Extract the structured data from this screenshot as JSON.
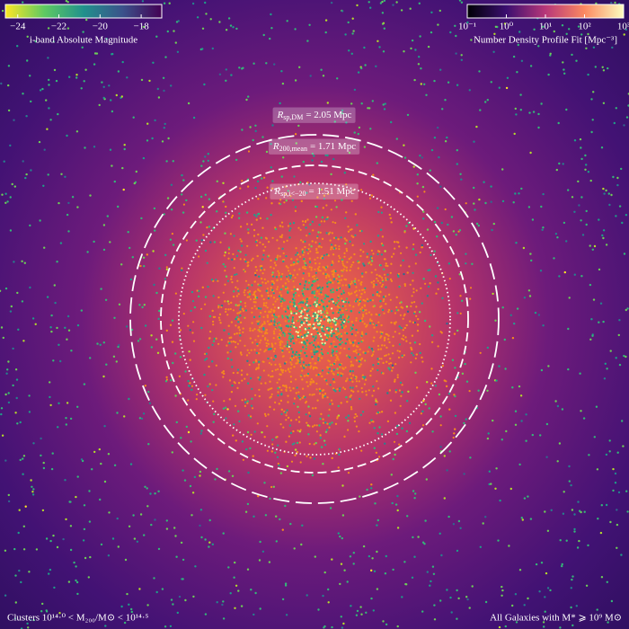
{
  "colorbars": [
    {
      "label": "i-band Absolute Magnitude",
      "lim": [
        -24.6,
        -17
      ],
      "log": false,
      "ticks": [
        {
          "value": -24,
          "label": "−24"
        },
        {
          "value": -22,
          "label": "−22"
        },
        {
          "value": -20,
          "label": "−20"
        },
        {
          "value": -18,
          "label": "−18"
        }
      ]
    },
    {
      "label": "Number Density Profile Fit [Mpc⁻³]",
      "lim": [
        0.1,
        1000
      ],
      "log": true,
      "ticks": [
        {
          "value": 0.1,
          "label": "10⁻¹"
        },
        {
          "value": 1,
          "label": "10⁰"
        },
        {
          "value": 10,
          "label": "10¹"
        },
        {
          "value": 100,
          "label": "10²"
        },
        {
          "value": 1000,
          "label": "10³"
        }
      ]
    }
  ],
  "circles": [
    {
      "symbol": "R",
      "subscript": "sp,DM",
      "text": "= 2.05 Mpc",
      "radius": 2.05,
      "style": "long-dash"
    },
    {
      "symbol": "R",
      "subscript": "200,mean",
      "text": "= 1.71 Mpc",
      "radius": 1.71,
      "style": "dash"
    },
    {
      "symbol": "R",
      "subscript": "sp,i<−20",
      "text": "= 1.51 Mpc",
      "radius": 1.51,
      "style": "dot"
    }
  ],
  "footer": {
    "left": "Clusters 10¹⁴·⁰ < M₂₀₀/M⊙ < 10¹⁴·⁵",
    "right": "All Galaxies with M* ⩾ 10⁹ M⊙"
  }
}
